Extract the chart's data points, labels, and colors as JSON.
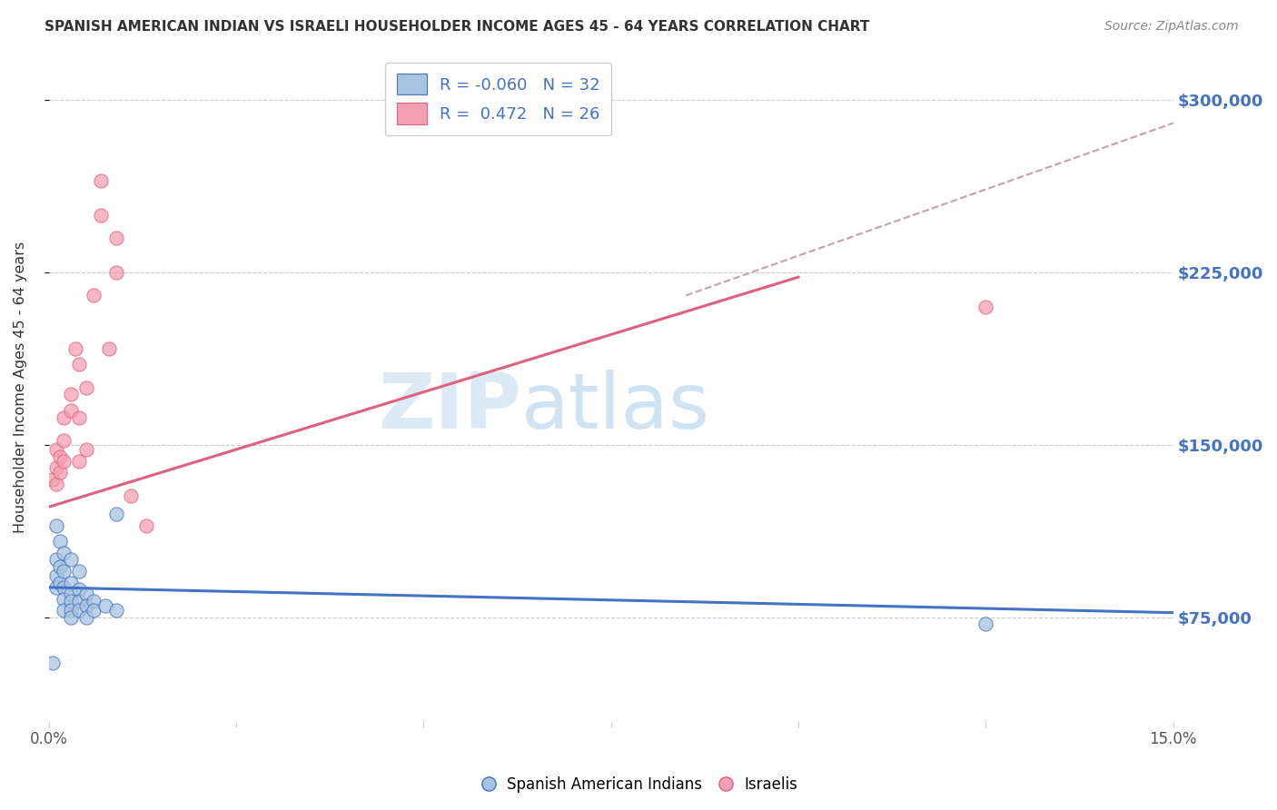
{
  "title": "SPANISH AMERICAN INDIAN VS ISRAELI HOUSEHOLDER INCOME AGES 45 - 64 YEARS CORRELATION CHART",
  "source": "Source: ZipAtlas.com",
  "ylabel_label": "Householder Income Ages 45 - 64 years",
  "xmin": 0.0,
  "xmax": 0.15,
  "ymin": 30000,
  "ymax": 320000,
  "yticks": [
    75000,
    150000,
    225000,
    300000
  ],
  "ytick_labels": [
    "$75,000",
    "$150,000",
    "$225,000",
    "$300,000"
  ],
  "xticks": [
    0.0,
    0.025,
    0.05,
    0.075,
    0.1,
    0.125,
    0.15
  ],
  "xtick_labels": [
    "0.0%",
    "",
    "",
    "",
    "",
    "",
    "15.0%"
  ],
  "color_blue": "#A8C4E0",
  "color_pink": "#F4A0B0",
  "line_blue": "#4472C4",
  "line_pink": "#E06080",
  "line_dashed_color": "#C8A0A8",
  "watermark_zip": "ZIP",
  "watermark_atlas": "atlas",
  "background_color": "#FFFFFF",
  "grid_color": "#CCCCCC",
  "blue_scatter": [
    [
      0.0005,
      55000
    ],
    [
      0.001,
      115000
    ],
    [
      0.001,
      100000
    ],
    [
      0.001,
      93000
    ],
    [
      0.001,
      88000
    ],
    [
      0.0015,
      108000
    ],
    [
      0.0015,
      97000
    ],
    [
      0.0015,
      90000
    ],
    [
      0.002,
      103000
    ],
    [
      0.002,
      95000
    ],
    [
      0.002,
      88000
    ],
    [
      0.002,
      83000
    ],
    [
      0.002,
      78000
    ],
    [
      0.003,
      100000
    ],
    [
      0.003,
      90000
    ],
    [
      0.003,
      85000
    ],
    [
      0.003,
      82000
    ],
    [
      0.003,
      78000
    ],
    [
      0.003,
      75000
    ],
    [
      0.004,
      95000
    ],
    [
      0.004,
      87000
    ],
    [
      0.004,
      82000
    ],
    [
      0.004,
      78000
    ],
    [
      0.005,
      85000
    ],
    [
      0.005,
      80000
    ],
    [
      0.005,
      75000
    ],
    [
      0.006,
      82000
    ],
    [
      0.006,
      78000
    ],
    [
      0.0075,
      80000
    ],
    [
      0.009,
      120000
    ],
    [
      0.009,
      78000
    ],
    [
      0.125,
      72000
    ]
  ],
  "pink_scatter": [
    [
      0.0005,
      135000
    ],
    [
      0.001,
      148000
    ],
    [
      0.001,
      140000
    ],
    [
      0.001,
      133000
    ],
    [
      0.0015,
      145000
    ],
    [
      0.0015,
      138000
    ],
    [
      0.002,
      162000
    ],
    [
      0.002,
      152000
    ],
    [
      0.002,
      143000
    ],
    [
      0.003,
      172000
    ],
    [
      0.003,
      165000
    ],
    [
      0.0035,
      192000
    ],
    [
      0.004,
      185000
    ],
    [
      0.004,
      162000
    ],
    [
      0.004,
      143000
    ],
    [
      0.005,
      175000
    ],
    [
      0.005,
      148000
    ],
    [
      0.006,
      215000
    ],
    [
      0.007,
      265000
    ],
    [
      0.007,
      250000
    ],
    [
      0.008,
      192000
    ],
    [
      0.009,
      240000
    ],
    [
      0.009,
      225000
    ],
    [
      0.011,
      128000
    ],
    [
      0.013,
      115000
    ],
    [
      0.125,
      210000
    ]
  ],
  "blue_line_x": [
    0.0,
    0.15
  ],
  "blue_line_y": [
    88000,
    77000
  ],
  "pink_line_x": [
    0.0,
    0.1
  ],
  "pink_line_y": [
    123000,
    223000
  ],
  "dashed_line_x": [
    0.085,
    0.15
  ],
  "dashed_line_y": [
    215000,
    290000
  ]
}
